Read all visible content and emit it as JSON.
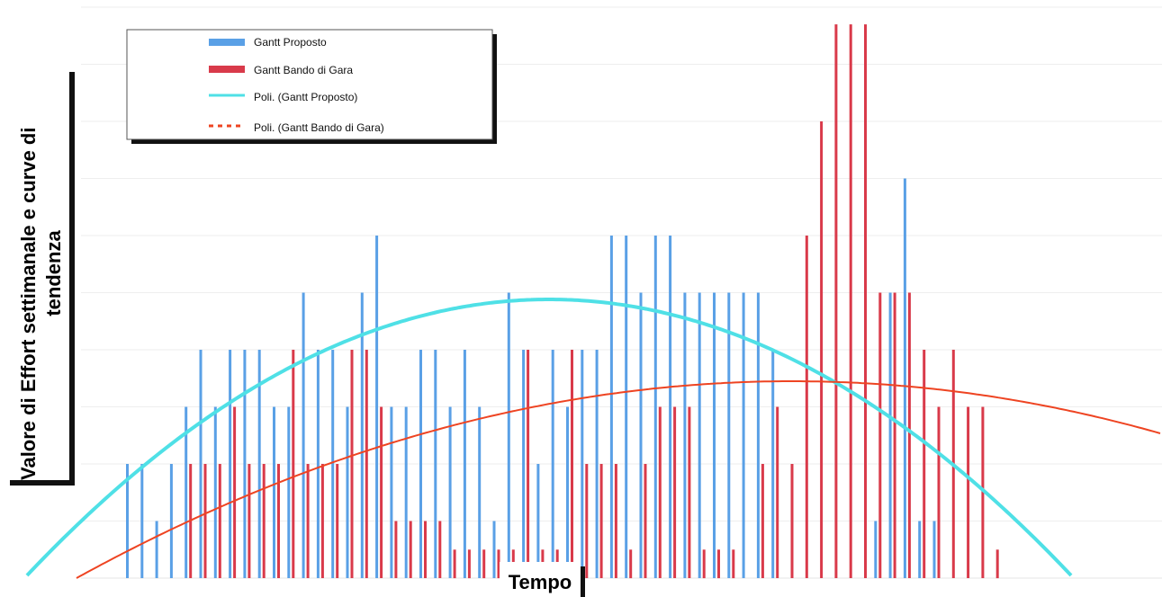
{
  "chart_data": {
    "type": "bar",
    "xlabel": "Tempo",
    "ylabel": "Valore di Effort settimanale e curve di tendenza",
    "ylim": [
      0,
      10
    ],
    "grid": true,
    "legend_position": "top-left",
    "series": [
      {
        "name": "Gantt Proposto",
        "color": "#5aa0e6",
        "values": [
          2,
          2,
          1,
          2,
          3,
          4,
          3,
          4,
          4,
          4,
          3,
          3,
          5,
          4,
          4,
          3,
          5,
          6,
          3,
          3,
          4,
          4,
          3,
          4,
          3,
          1,
          5,
          4,
          2,
          4,
          3,
          4,
          4,
          6,
          6,
          5,
          6,
          6,
          5,
          5,
          5,
          5,
          5,
          5,
          4,
          0,
          0,
          0,
          0,
          0,
          0,
          1,
          5,
          7,
          1,
          1
        ]
      },
      {
        "name": "Gantt Bando di Gara",
        "color": "#d93a4a",
        "values": [
          0,
          0,
          0,
          0,
          2,
          2,
          2,
          3,
          2,
          2,
          2,
          4,
          2,
          2,
          2,
          4,
          4,
          3,
          1,
          1,
          1,
          1,
          0.5,
          0.5,
          0.5,
          0.5,
          0.5,
          4,
          0.5,
          0.5,
          4,
          2,
          2,
          2,
          0.5,
          2,
          3,
          3,
          3,
          0.5,
          0.5,
          0.5,
          0,
          2,
          3,
          2,
          6,
          8,
          9.7,
          9.7,
          9.7,
          5,
          5,
          5,
          4,
          3,
          4,
          3,
          3,
          0.5
        ]
      }
    ],
    "trendlines": [
      {
        "name": "Poli. (Gantt Proposto)",
        "color": "#4fe0e6",
        "style": "solid"
      },
      {
        "name": "Poli. (Gantt Bando di Gara)",
        "color": "#ee4422",
        "style": "dashed"
      }
    ]
  }
}
